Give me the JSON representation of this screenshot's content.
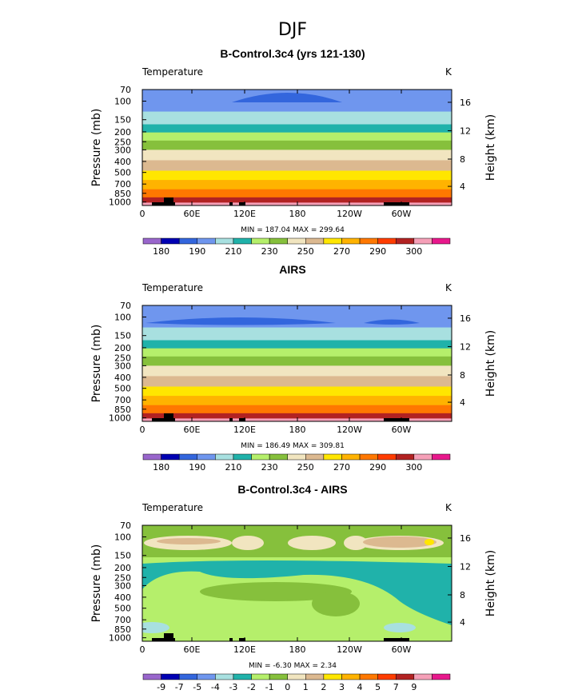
{
  "figure_title": "DJF",
  "chart_data": [
    {
      "type": "heatmap",
      "title": "B-Control.3c4 (yrs 121-130)",
      "variable_label": "Temperature",
      "units_label": "K",
      "ylabel": "Pressure (mb)",
      "y2label": "Height (km)",
      "x_ticks": [
        "0",
        "60E",
        "120E",
        "180",
        "120W",
        "60W"
      ],
      "y_ticks": [
        "70",
        "100",
        "150",
        "200",
        "250",
        "300",
        "400",
        "500",
        "700",
        "850",
        "1000"
      ],
      "y2_ticks": [
        "16",
        "12",
        "8",
        "4"
      ],
      "stats_text": "MIN = 187.04   MAX = 299.64",
      "levels": [
        "180",
        "190",
        "210",
        "230",
        "250",
        "270",
        "290",
        "300"
      ],
      "level_values": [
        175,
        180,
        185,
        190,
        200,
        210,
        220,
        230,
        240,
        250,
        260,
        270,
        280,
        290,
        295,
        300,
        305
      ],
      "colors": [
        "#9966cc",
        "#0000b3",
        "#3366dd",
        "#6f96ee",
        "#a8e0e0",
        "#20b2aa",
        "#b5ef6b",
        "#86c03c",
        "#f1e5c0",
        "#dcb990",
        "#ffe600",
        "#ffb300",
        "#ff7800",
        "#ff3d00",
        "#b22222",
        "#f5a0b8",
        "#e8188c"
      ]
    },
    {
      "type": "heatmap",
      "title": "AIRS",
      "variable_label": "Temperature",
      "units_label": "K",
      "ylabel": "Pressure (mb)",
      "y2label": "Height (km)",
      "x_ticks": [
        "0",
        "60E",
        "120E",
        "180",
        "120W",
        "60W"
      ],
      "y_ticks": [
        "70",
        "100",
        "150",
        "200",
        "250",
        "300",
        "400",
        "500",
        "700",
        "850",
        "1000"
      ],
      "y2_ticks": [
        "16",
        "12",
        "8",
        "4"
      ],
      "stats_text": "MIN = 186.49   MAX = 309.81",
      "levels": [
        "180",
        "190",
        "210",
        "230",
        "250",
        "270",
        "290",
        "300"
      ],
      "level_values": [
        175,
        180,
        185,
        190,
        200,
        210,
        220,
        230,
        240,
        250,
        260,
        270,
        280,
        290,
        295,
        300,
        305
      ],
      "colors": [
        "#9966cc",
        "#0000b3",
        "#3366dd",
        "#6f96ee",
        "#a8e0e0",
        "#20b2aa",
        "#b5ef6b",
        "#86c03c",
        "#f1e5c0",
        "#dcb990",
        "#ffe600",
        "#ffb300",
        "#ff7800",
        "#ff3d00",
        "#b22222",
        "#f5a0b8",
        "#e8188c"
      ]
    },
    {
      "type": "heatmap",
      "title": "B-Control.3c4 - AIRS",
      "variable_label": "Temperature",
      "units_label": "K",
      "ylabel": "Pressure (mb)",
      "y2label": "Height (km)",
      "x_ticks": [
        "0",
        "60E",
        "120E",
        "180",
        "120W",
        "60W"
      ],
      "y_ticks": [
        "70",
        "100",
        "150",
        "200",
        "250",
        "300",
        "400",
        "500",
        "700",
        "850",
        "1000"
      ],
      "y2_ticks": [
        "16",
        "12",
        "8",
        "4"
      ],
      "stats_text": "MIN =  -6.30   MAX =    2.34",
      "levels": [
        "-9",
        "-7",
        "-5",
        "-4",
        "-3",
        "-2",
        "-1",
        "0",
        "1",
        "2",
        "3",
        "4",
        "5",
        "7",
        "9"
      ],
      "level_values": [
        -10,
        -9,
        -7,
        -5,
        -4,
        -3,
        -2,
        -1,
        0,
        1,
        2,
        3,
        4,
        5,
        7,
        9,
        10
      ],
      "colors": [
        "#9966cc",
        "#0000b3",
        "#3366dd",
        "#6f96ee",
        "#a8e0e0",
        "#20b2aa",
        "#b5ef6b",
        "#86c03c",
        "#f1e5c0",
        "#dcb990",
        "#ffe600",
        "#ffb300",
        "#ff7800",
        "#ff3d00",
        "#b22222",
        "#f5a0b8",
        "#e8188c"
      ]
    }
  ]
}
